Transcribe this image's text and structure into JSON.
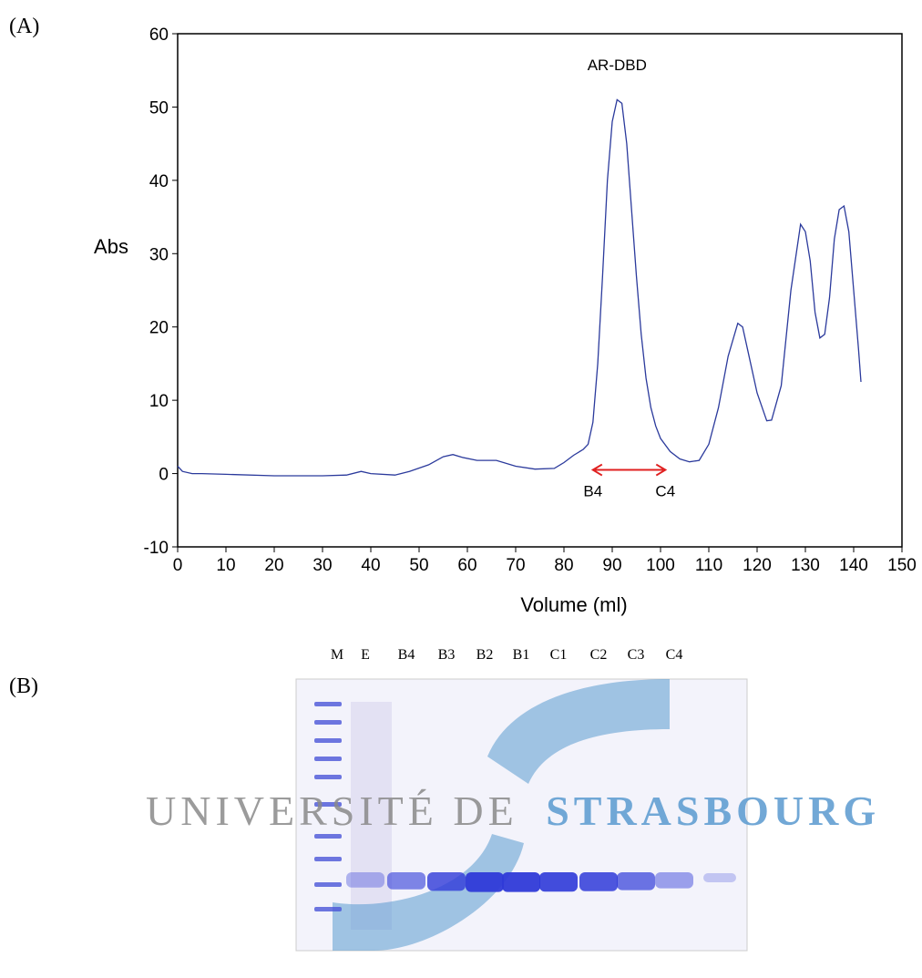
{
  "chart_data": {
    "type": "line",
    "xlabel": "Volume (ml)",
    "ylabel": "Abs",
    "x": [
      0,
      1,
      3,
      5,
      10,
      20,
      30,
      35,
      38,
      40,
      45,
      48,
      52,
      55,
      57,
      59,
      62,
      66,
      70,
      74,
      78,
      80,
      82,
      84,
      85,
      86,
      87,
      88,
      89,
      90,
      91,
      92,
      93,
      94,
      95,
      96,
      97,
      98,
      99,
      100,
      102,
      104,
      106,
      108,
      110,
      112,
      114,
      116,
      117,
      118,
      120,
      122,
      123,
      125,
      127,
      129,
      130,
      131,
      132,
      133,
      134,
      135,
      136,
      137,
      138,
      139,
      140,
      141,
      141.5
    ],
    "series": [
      {
        "color": "#2b3a9c",
        "values": [
          1,
          0.3,
          0,
          0,
          -0.1,
          -0.3,
          -0.3,
          -0.2,
          0.3,
          0,
          -0.2,
          0.3,
          1.2,
          2.3,
          2.6,
          2.2,
          1.8,
          1.8,
          1.0,
          0.6,
          0.7,
          1.5,
          2.5,
          3.3,
          4,
          7,
          15,
          27,
          40,
          48,
          51,
          50.5,
          45,
          36,
          27,
          19,
          13,
          9,
          6.5,
          4.8,
          3,
          2,
          1.6,
          1.8,
          4,
          9,
          16,
          20.5,
          20,
          17,
          11,
          7.2,
          7.3,
          12,
          25,
          34,
          33,
          29,
          22,
          18.5,
          19,
          24,
          32,
          36,
          36.5,
          33,
          25,
          17,
          12.5
        ]
      }
    ],
    "xlim": [
      0,
      150
    ],
    "ylim": [
      -10,
      60
    ],
    "xticks": [
      0,
      10,
      20,
      30,
      40,
      50,
      60,
      70,
      80,
      90,
      100,
      110,
      120,
      130,
      140,
      150
    ],
    "yticks": [
      -10,
      0,
      10,
      20,
      30,
      40,
      50,
      60
    ],
    "annotations": [
      {
        "text": "AR-DBD",
        "x": 91,
        "y": 55
      },
      {
        "text": "B4",
        "x": 86,
        "y": 0.5
      },
      {
        "text": "C4",
        "x": 101,
        "y": 0.5
      }
    ],
    "arrow_color": "#e02020"
  },
  "panel_labels": [
    "(A)",
    "(B)"
  ],
  "gel": {
    "lanes": [
      "M",
      "E",
      "B4",
      "B3",
      "B2",
      "B1",
      "C1",
      "C2",
      "C3",
      "C4"
    ],
    "watermark": [
      "UNIVERSITÉ DE",
      "STRASBOURG"
    ]
  }
}
